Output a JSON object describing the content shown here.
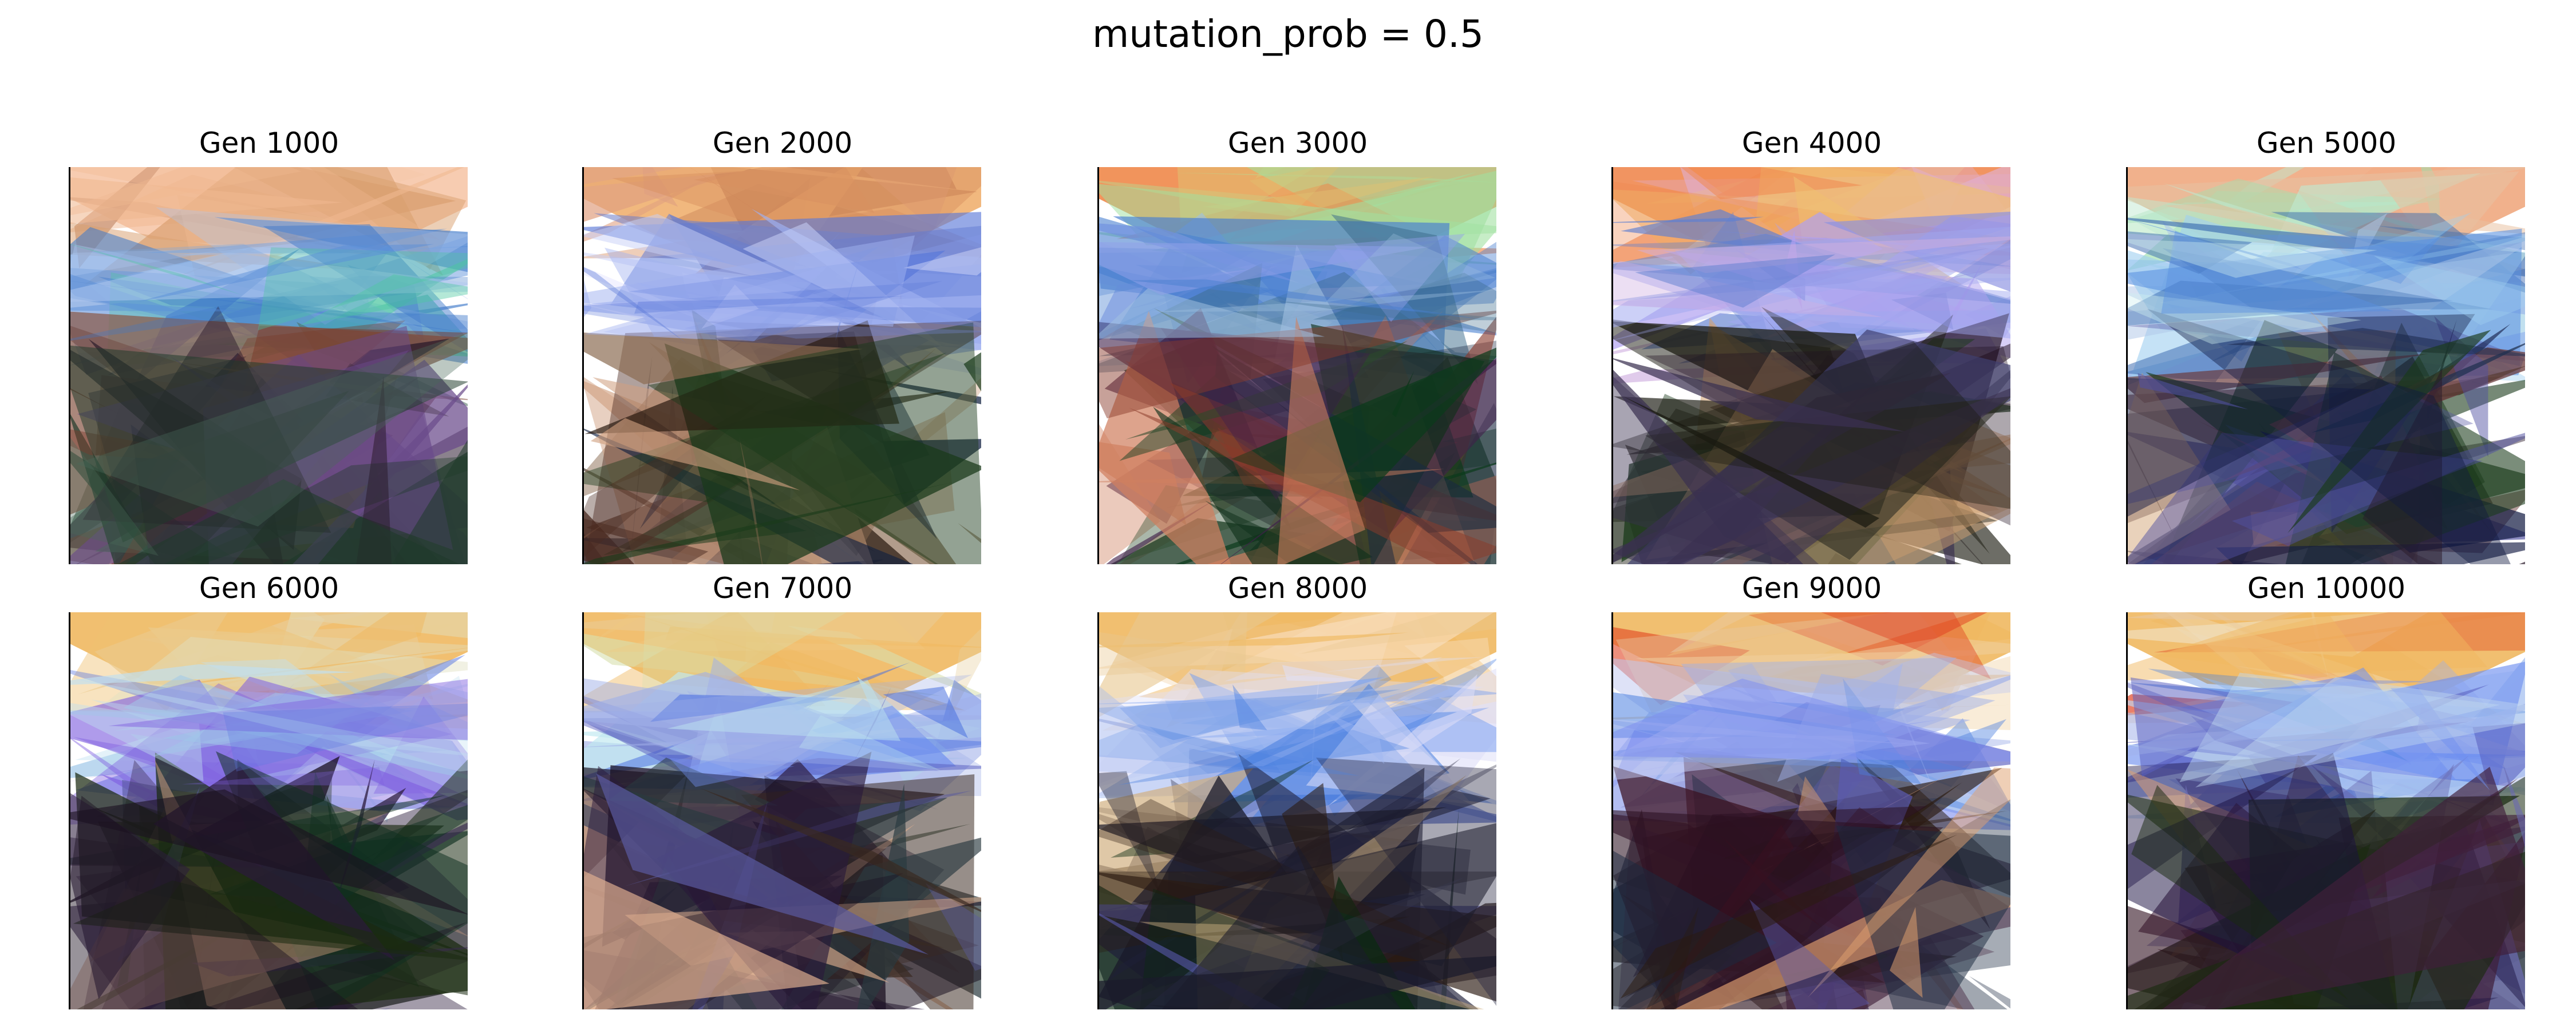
{
  "figure": {
    "title": "mutation_prob = 0.5"
  },
  "panels": [
    {
      "label": "Gen 1000",
      "palette": "warm-peach-top, teal-right, dark-mixed-bottom"
    },
    {
      "label": "Gen 2000",
      "palette": "peach-top, blue-lavender-middle, dark-green-bottom"
    },
    {
      "label": "Gen 3000",
      "palette": "orange-green-top, blue-middle, dark-green-bottom"
    },
    {
      "label": "Gen 4000",
      "palette": "orange-pink-top, lavender-middle, dark-brown-bottom"
    },
    {
      "label": "Gen 5000",
      "palette": "peach-top, light-blue-middle, navy-bottom"
    },
    {
      "label": "Gen 6000",
      "palette": "gold-top, blue-violet-middle, dark-purple-bottom"
    },
    {
      "label": "Gen 7000",
      "palette": "gold-top, blue-middle, dark-purple-bottom"
    },
    {
      "label": "Gen 8000",
      "palette": "gold-top, blue-middle, dark-green-bottom"
    },
    {
      "label": "Gen 9000",
      "palette": "gold-top, blue-middle, maroon-bottom"
    },
    {
      "label": "Gen 10000",
      "palette": "gold-top, blue-middle, maroon-navy-bottom"
    }
  ]
}
